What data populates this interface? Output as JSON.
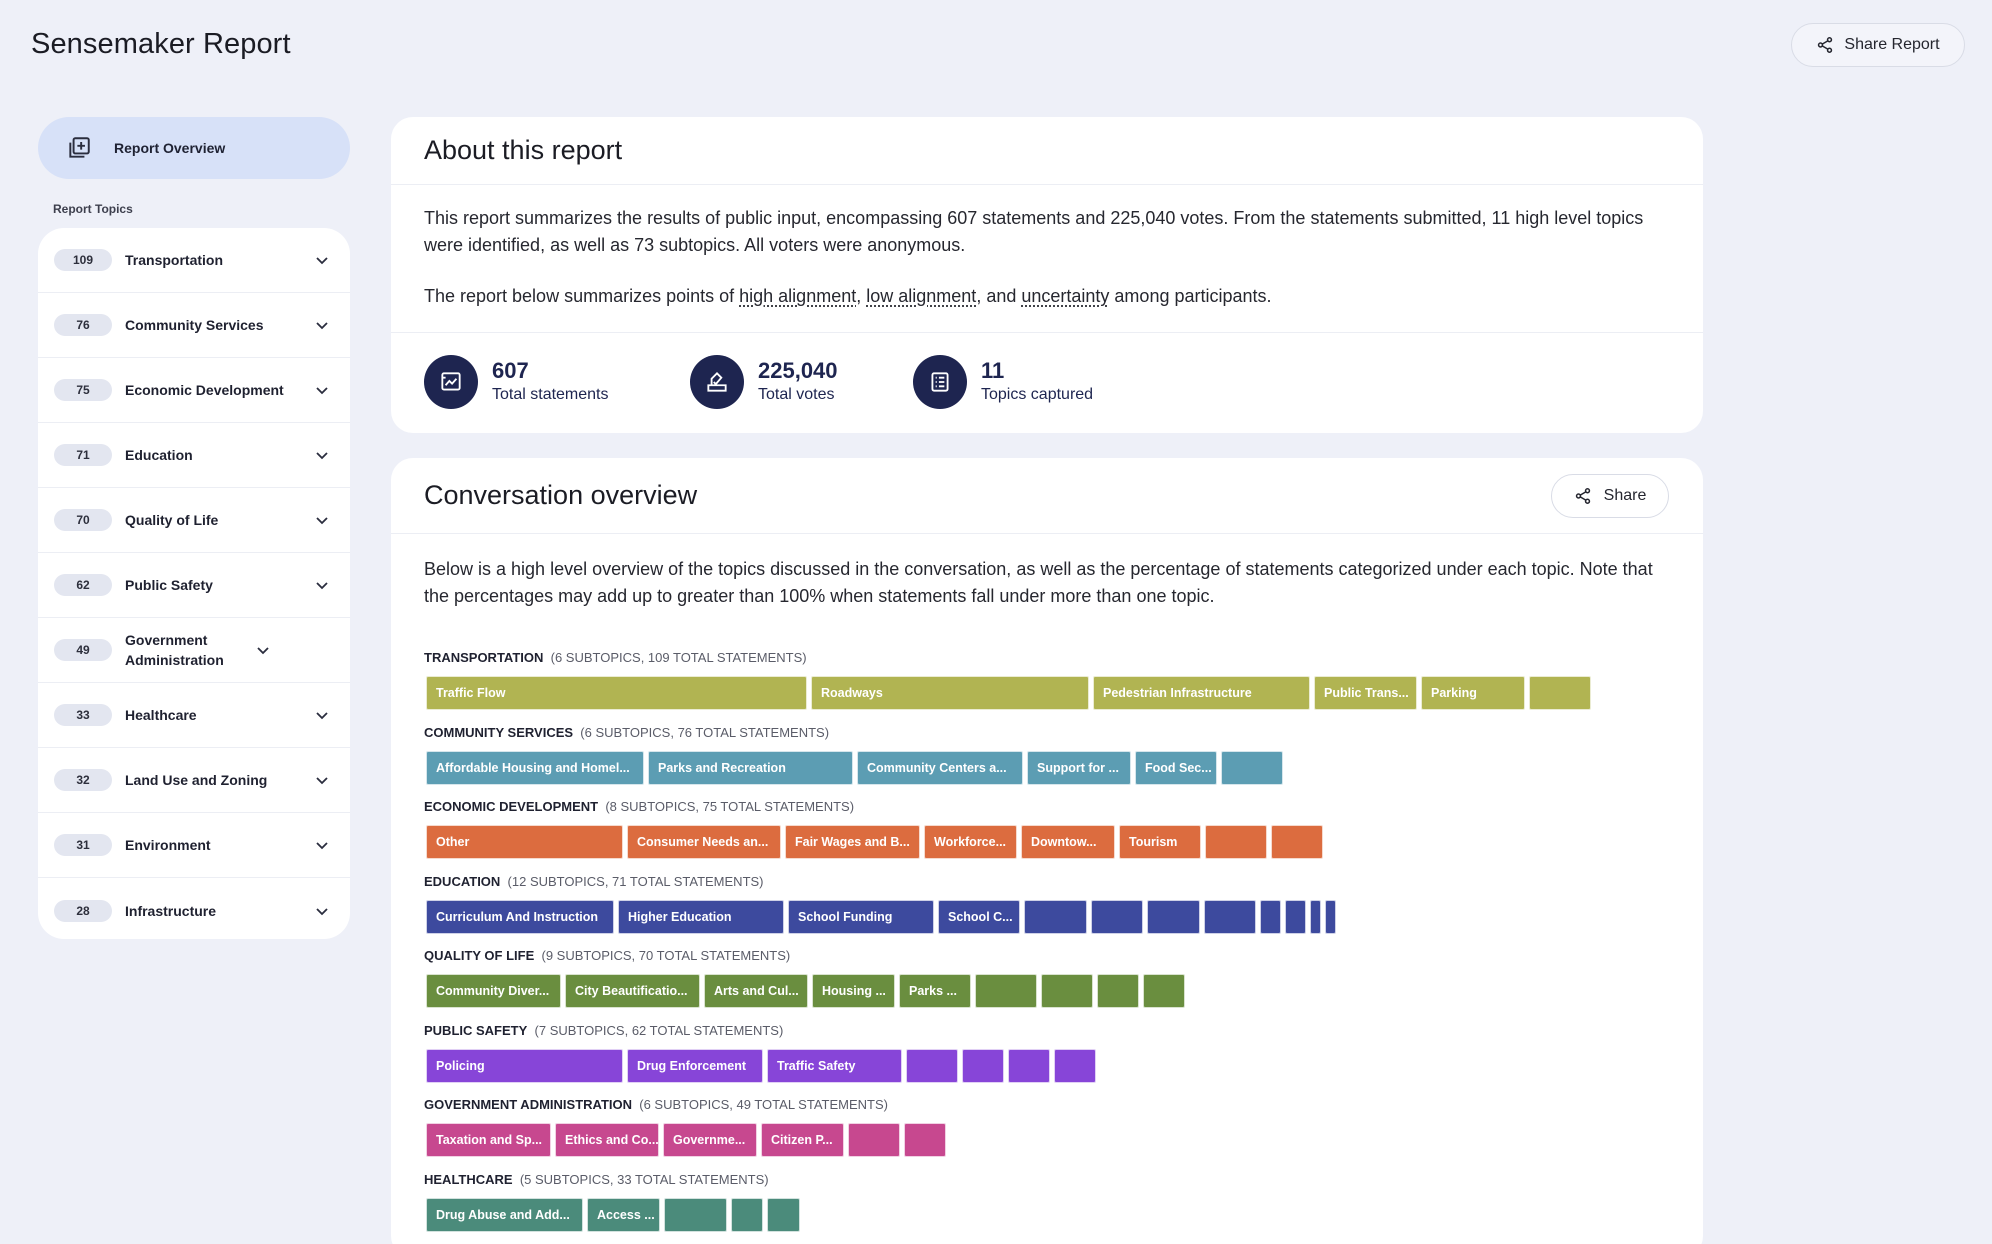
{
  "header": {
    "title": "Sensemaker Report",
    "share_label": "Share Report"
  },
  "sidebar": {
    "overview_label": "Report Overview",
    "topics_heading": "Report Topics",
    "items": [
      {
        "count": "109",
        "label": "Transportation"
      },
      {
        "count": "76",
        "label": "Community Services"
      },
      {
        "count": "75",
        "label": "Economic Development"
      },
      {
        "count": "71",
        "label": "Education"
      },
      {
        "count": "70",
        "label": "Quality of Life"
      },
      {
        "count": "62",
        "label": "Public Safety"
      },
      {
        "count": "49",
        "label": "Government Administration"
      },
      {
        "count": "33",
        "label": "Healthcare"
      },
      {
        "count": "32",
        "label": "Land Use and Zoning"
      },
      {
        "count": "31",
        "label": "Environment"
      },
      {
        "count": "28",
        "label": "Infrastructure"
      }
    ]
  },
  "about": {
    "title": "About this report",
    "paragraph1": "This report summarizes the results of public input, encompassing 607 statements and 225,040 votes. From the statements submitted, 11 high level topics were identified, as well as 73 subtopics. All voters were anonymous.",
    "p2_prefix": "The report below summarizes points of ",
    "p2_term1": "high alignment",
    "p2_sep1": ", ",
    "p2_term2": "low alignment",
    "p2_sep2": ", and ",
    "p2_term3": "uncertainty",
    "p2_suffix": " among participants.",
    "stats": [
      {
        "value": "607",
        "label": "Total statements",
        "icon": "statements-icon"
      },
      {
        "value": "225,040",
        "label": "Total votes",
        "icon": "vote-icon"
      },
      {
        "value": "11",
        "label": "Topics captured",
        "icon": "topics-list-icon"
      }
    ]
  },
  "conversation": {
    "title": "Conversation overview",
    "share_label": "Share",
    "description": "Below is a high level overview of the topics discussed in the conversation, as well as the percentage of statements categorized under each topic. Note that the percentages may add up to greater than 100% when statements fall under more than one topic.",
    "topics": [
      {
        "name": "TRANSPORTATION",
        "meta": "(6 SUBTOPICS, 109 TOTAL STATEMENTS)",
        "color": "#b1b452",
        "bars": [
          {
            "label": "Traffic Flow",
            "w": 381
          },
          {
            "label": "Roadways",
            "w": 278
          },
          {
            "label": "Pedestrian Infrastructure",
            "w": 217
          },
          {
            "label": "Public Trans...",
            "w": 103
          },
          {
            "label": "Parking",
            "w": 104
          },
          {
            "label": "",
            "w": 62
          }
        ]
      },
      {
        "name": "COMMUNITY SERVICES",
        "meta": "(6 SUBTOPICS, 76 TOTAL STATEMENTS)",
        "color": "#5c9db3",
        "bars": [
          {
            "label": "Affordable Housing and Homel...",
            "w": 218
          },
          {
            "label": "Parks and Recreation",
            "w": 205
          },
          {
            "label": "Community Centers a...",
            "w": 166
          },
          {
            "label": "Support for ...",
            "w": 104
          },
          {
            "label": "Food Sec...",
            "w": 82
          },
          {
            "label": "",
            "w": 62
          }
        ]
      },
      {
        "name": "ECONOMIC DEVELOPMENT",
        "meta": "(8 SUBTOPICS, 75 TOTAL STATEMENTS)",
        "color": "#dc6c3f",
        "bars": [
          {
            "label": "Other",
            "w": 197
          },
          {
            "label": "Consumer Needs an...",
            "w": 154
          },
          {
            "label": "Fair Wages and B...",
            "w": 135
          },
          {
            "label": "Workforce...",
            "w": 93
          },
          {
            "label": "Downtow...",
            "w": 94
          },
          {
            "label": "Tourism",
            "w": 82
          },
          {
            "label": "",
            "w": 62
          },
          {
            "label": "",
            "w": 52
          }
        ]
      },
      {
        "name": "EDUCATION",
        "meta": "(12 SUBTOPICS, 71 TOTAL STATEMENTS)",
        "color": "#3d4a9e",
        "bars": [
          {
            "label": "Curriculum And Instruction",
            "w": 188
          },
          {
            "label": "Higher Education",
            "w": 166
          },
          {
            "label": "School Funding",
            "w": 146
          },
          {
            "label": "School C...",
            "w": 82
          },
          {
            "label": "",
            "w": 63
          },
          {
            "label": "",
            "w": 52
          },
          {
            "label": "",
            "w": 53
          },
          {
            "label": "",
            "w": 52
          },
          {
            "label": "",
            "w": 21
          },
          {
            "label": "",
            "w": 21
          },
          {
            "label": "",
            "w": 11
          },
          {
            "label": "",
            "w": 10
          }
        ]
      },
      {
        "name": "QUALITY OF LIFE",
        "meta": "(9 SUBTOPICS, 70 TOTAL STATEMENTS)",
        "color": "#6a8e3f",
        "bars": [
          {
            "label": "Community Diver...",
            "w": 135
          },
          {
            "label": "City Beautificatio...",
            "w": 135
          },
          {
            "label": "Arts and Cul...",
            "w": 104
          },
          {
            "label": "Housing ...",
            "w": 83
          },
          {
            "label": "Parks ...",
            "w": 72
          },
          {
            "label": "",
            "w": 62
          },
          {
            "label": "",
            "w": 52
          },
          {
            "label": "",
            "w": 42
          },
          {
            "label": "",
            "w": 42
          }
        ]
      },
      {
        "name": "PUBLIC SAFETY",
        "meta": "(7 SUBTOPICS, 62 TOTAL STATEMENTS)",
        "color": "#8745d8",
        "bars": [
          {
            "label": "Policing",
            "w": 197
          },
          {
            "label": "Drug Enforcement",
            "w": 136
          },
          {
            "label": "Traffic Safety",
            "w": 135
          },
          {
            "label": "",
            "w": 52
          },
          {
            "label": "",
            "w": 42
          },
          {
            "label": "",
            "w": 42
          },
          {
            "label": "",
            "w": 42
          }
        ]
      },
      {
        "name": "GOVERNMENT ADMINISTRATION",
        "meta": "(6 SUBTOPICS, 49 TOTAL STATEMENTS)",
        "color": "#c7488f",
        "bars": [
          {
            "label": "Taxation and Sp...",
            "w": 125
          },
          {
            "label": "Ethics and Co...",
            "w": 104
          },
          {
            "label": "Governme...",
            "w": 94
          },
          {
            "label": "Citizen P...",
            "w": 83
          },
          {
            "label": "",
            "w": 52
          },
          {
            "label": "",
            "w": 42
          }
        ]
      },
      {
        "name": "HEALTHCARE",
        "meta": "(5 SUBTOPICS, 33 TOTAL STATEMENTS)",
        "color": "#4b8b7b",
        "bars": [
          {
            "label": "Drug Abuse and Add...",
            "w": 157
          },
          {
            "label": "Access ...",
            "w": 73
          },
          {
            "label": "",
            "w": 63
          },
          {
            "label": "",
            "w": 32
          },
          {
            "label": "",
            "w": 33
          }
        ]
      }
    ]
  }
}
